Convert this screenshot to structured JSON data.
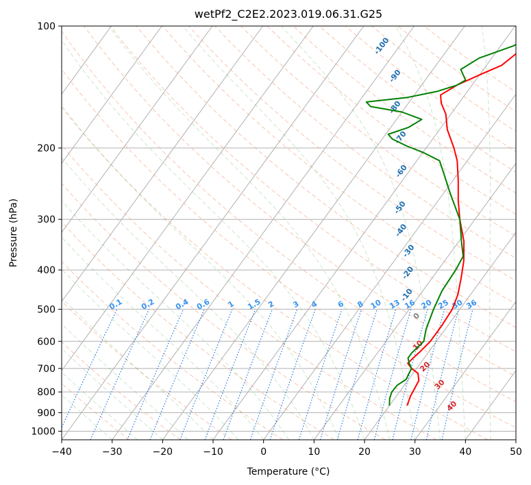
{
  "chart_data": {
    "type": "line",
    "title": "wetPf2_C2E2.2023.019.06.31.G25",
    "xlabel": "Temperature (°C)",
    "ylabel": "Pressure (hPa)",
    "xlim": [
      -40,
      50
    ],
    "ylim": [
      1050,
      100
    ],
    "y_scale": "log",
    "grid": true,
    "x_ticks": [
      -40,
      -30,
      -20,
      -10,
      0,
      10,
      20,
      30,
      40,
      50
    ],
    "y_ticks": [
      1000,
      900,
      800,
      700,
      600,
      500,
      400,
      300,
      200,
      100
    ],
    "dry_adiabat_labels": [
      {
        "text": "-100",
        "p": 113,
        "t": -33
      },
      {
        "text": "-90",
        "p": 134,
        "t": -26
      },
      {
        "text": "-80",
        "p": 160,
        "t": -21.5
      },
      {
        "text": "-70",
        "p": 190,
        "t": -16
      },
      {
        "text": "-60",
        "p": 230,
        "t": -11
      },
      {
        "text": "-50",
        "p": 283,
        "t": -6
      },
      {
        "text": "-40",
        "p": 322,
        "t": -2.5
      },
      {
        "text": "-30",
        "p": 362,
        "t": 2
      },
      {
        "text": "-20",
        "p": 410,
        "t": 5
      },
      {
        "text": "-10",
        "p": 465,
        "t": 8
      }
    ],
    "moist_adiabat_labels": [
      {
        "text": "0",
        "p": 525,
        "t": 13
      },
      {
        "text": "10",
        "p": 620,
        "t": 17.5
      },
      {
        "text": "20",
        "p": 700,
        "t": 22
      },
      {
        "text": "30",
        "p": 775,
        "t": 27.5
      },
      {
        "text": "40",
        "p": 875,
        "t": 33
      }
    ],
    "mixing_ratio_labels": [
      "0.1",
      "0.2",
      "0.4",
      "0.6",
      "1",
      "1.5",
      "2",
      "3",
      "4",
      "6",
      "8",
      "10",
      "13",
      "16",
      "20",
      "25",
      "30",
      "36"
    ],
    "series": [
      {
        "color": "#ff0000",
        "points": [
          [
            865,
            23.5
          ],
          [
            820,
            22.8
          ],
          [
            750,
            22.2
          ],
          [
            720,
            21.0
          ],
          [
            700,
            19.0
          ],
          [
            680,
            17.5
          ],
          [
            660,
            17.8
          ],
          [
            640,
            18.2
          ],
          [
            600,
            18.8
          ],
          [
            550,
            18.8
          ],
          [
            500,
            18.5
          ],
          [
            460,
            17.5
          ],
          [
            420,
            15.8
          ],
          [
            380,
            13.8
          ],
          [
            340,
            11.0
          ],
          [
            300,
            7.0
          ],
          [
            270,
            4.0
          ],
          [
            240,
            1.0
          ],
          [
            215,
            -2.0
          ],
          [
            200,
            -4.5
          ],
          [
            180,
            -8.5
          ],
          [
            165,
            -11.0
          ],
          [
            155,
            -13.5
          ],
          [
            148,
            -14.8
          ],
          [
            140,
            -13.0
          ],
          [
            132,
            -10.0
          ],
          [
            125,
            -7.0
          ],
          [
            115,
            -5.5
          ],
          [
            108,
            -4.0
          ],
          [
            100,
            -2.0
          ]
        ]
      },
      {
        "color": "#008000",
        "points": [
          [
            865,
            20.0
          ],
          [
            830,
            19.0
          ],
          [
            800,
            18.5
          ],
          [
            770,
            18.6
          ],
          [
            745,
            19.5
          ],
          [
            720,
            19.2
          ],
          [
            700,
            19.0
          ],
          [
            680,
            17.8
          ],
          [
            660,
            16.8
          ],
          [
            640,
            16.8
          ],
          [
            600,
            17.5
          ],
          [
            560,
            16.2
          ],
          [
            500,
            14.8
          ],
          [
            450,
            13.8
          ],
          [
            400,
            13.5
          ],
          [
            370,
            13.0
          ],
          [
            340,
            10.5
          ],
          [
            300,
            7.0
          ],
          [
            260,
            1.5
          ],
          [
            230,
            -3.0
          ],
          [
            215,
            -5.5
          ],
          [
            205,
            -10.0
          ],
          [
            198,
            -14.0
          ],
          [
            190,
            -18.0
          ],
          [
            185,
            -19.5
          ],
          [
            178,
            -16.5
          ],
          [
            170,
            -15.0
          ],
          [
            163,
            -20.0
          ],
          [
            158,
            -27.0
          ],
          [
            154,
            -28.5
          ],
          [
            150,
            -21.0
          ],
          [
            145,
            -16.0
          ],
          [
            140,
            -13.0
          ],
          [
            136,
            -12.0
          ],
          [
            128,
            -14.5
          ],
          [
            120,
            -12.5
          ],
          [
            112,
            -7.5
          ],
          [
            105,
            -5.0
          ],
          [
            100,
            -3.0
          ]
        ]
      }
    ]
  }
}
